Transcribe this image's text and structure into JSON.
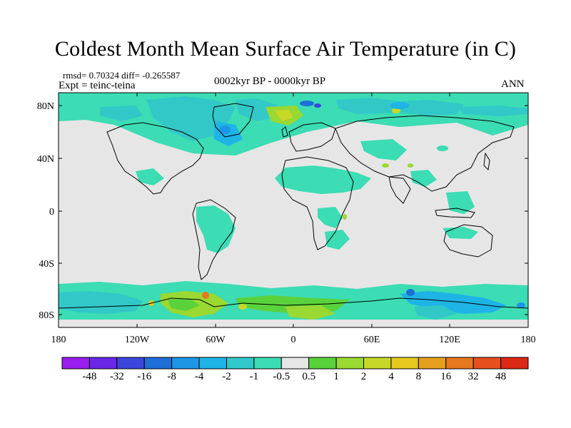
{
  "title": "Coldest Month Mean Surface Air Temperature (in C)",
  "stats": {
    "rmsd_label": "rmsd= 0.70324 diff= -0.265587"
  },
  "experiment": {
    "label": "Expt = teinc-teina"
  },
  "period": "0002kyr BP - 0000kyr BP",
  "season": "ANN",
  "axes": {
    "lat_labels": [
      "80N",
      "40N",
      "0",
      "40S",
      "80S"
    ],
    "lon_labels": [
      "180",
      "120W",
      "60W",
      "0",
      "60E",
      "120E",
      "180"
    ]
  },
  "colorbar": {
    "labels": [
      "-48",
      "-32",
      "-16",
      "-8",
      "-4",
      "-2",
      "-1",
      "-0.5",
      "0.5",
      "1",
      "2",
      "4",
      "8",
      "16",
      "32",
      "48"
    ],
    "colors": [
      "#9a1ef0",
      "#6a28e6",
      "#3c46dc",
      "#1e6ed8",
      "#1e96e6",
      "#1eb4e6",
      "#32c8c8",
      "#3cdcb4",
      "#e6e6e6",
      "#5ad23c",
      "#9ad832",
      "#c8d828",
      "#e6c81e",
      "#e6a01e",
      "#e6781e",
      "#e6501e",
      "#dc2814"
    ]
  }
}
